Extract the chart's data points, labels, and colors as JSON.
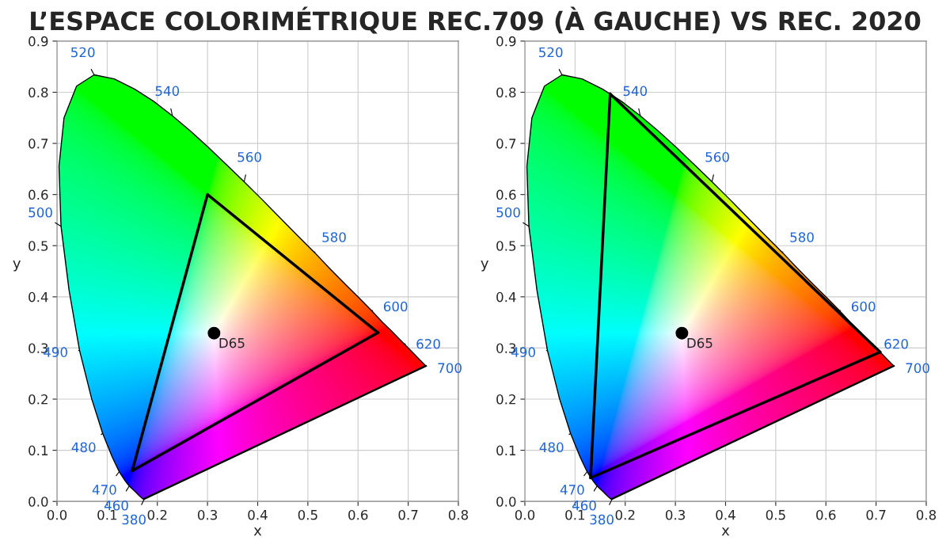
{
  "chart_data": [
    {
      "type": "line",
      "title": "L’ESPACE COLORIMÉTRIQUE REC.709 (À GAUCHE) VS REC. 2020",
      "xlabel": "x",
      "ylabel": "y",
      "xlim": [
        0,
        0.8
      ],
      "ylim": [
        0,
        0.9
      ],
      "xticks": [
        {
          "value": 0,
          "label": "0.0"
        },
        0.1,
        0.2,
        0.3,
        0.4,
        0.5,
        0.6,
        0.7,
        0.8
      ],
      "yticks": [
        {
          "value": 0,
          "label": "0.0"
        },
        0.1,
        0.2,
        0.3,
        0.4,
        0.5,
        0.6,
        0.7,
        0.8,
        0.9
      ],
      "grid": true,
      "series": [
        {
          "color": "#000000",
          "x": [
            0.174,
            0.171,
            0.164,
            0.157,
            0.144,
            0.136,
            0.124,
            0.11,
            0.091,
            0.069,
            0.045,
            0.024,
            0.008,
            0.004,
            0.014,
            0.039,
            0.074,
            0.114,
            0.155,
            0.193,
            0.23,
            0.266,
            0.302,
            0.337,
            0.373,
            0.409,
            0.444,
            0.479,
            0.513,
            0.545,
            0.575,
            0.603,
            0.627,
            0.648,
            0.666,
            0.692,
            0.708,
            0.719,
            0.726,
            0.732,
            0.735
          ],
          "values": [
            0.005,
            0.005,
            0.011,
            0.018,
            0.03,
            0.04,
            0.058,
            0.087,
            0.133,
            0.201,
            0.295,
            0.413,
            0.538,
            0.655,
            0.75,
            0.812,
            0.834,
            0.826,
            0.806,
            0.782,
            0.754,
            0.724,
            0.692,
            0.659,
            0.625,
            0.59,
            0.555,
            0.52,
            0.487,
            0.454,
            0.424,
            0.397,
            0.373,
            0.351,
            0.334,
            0.308,
            0.292,
            0.281,
            0.274,
            0.268,
            0.265
          ]
        },
        {
          "color": "#000000",
          "x": [
            0.735,
            0.174
          ],
          "values": [
            0.265,
            0.005
          ]
        },
        {
          "color": "#000000",
          "x": [
            0.64,
            0.3,
            0.15
          ],
          "values": [
            0.33,
            0.6,
            0.06
          ]
        },
        {
          "color": "#000000",
          "x": [
            0.15,
            0.64
          ],
          "values": [
            0.06,
            0.33
          ]
        },
        {
          "type": "scatter",
          "marker": "circle",
          "color": "#000000",
          "x": [
            0.313
          ],
          "values": [
            0.329
          ]
        }
      ],
      "annotations": [
        {
          "text": "380",
          "x": 0.174,
          "y": 0.005
        },
        {
          "text": "460",
          "x": 0.144,
          "y": 0.03
        },
        {
          "text": "470",
          "x": 0.124,
          "y": 0.058
        },
        {
          "text": "480",
          "x": 0.091,
          "y": 0.133
        },
        {
          "text": "490",
          "x": 0.045,
          "y": 0.295
        },
        {
          "text": "500",
          "x": 0.008,
          "y": 0.538
        },
        {
          "text": "520",
          "x": 0.074,
          "y": 0.834
        },
        {
          "text": "540",
          "x": 0.23,
          "y": 0.754
        },
        {
          "text": "560",
          "x": 0.373,
          "y": 0.625
        },
        {
          "text": "580",
          "x": 0.513,
          "y": 0.487
        },
        {
          "text": "600",
          "x": 0.627,
          "y": 0.373
        },
        {
          "text": "620",
          "x": 0.692,
          "y": 0.308
        },
        {
          "text": "700",
          "x": 0.735,
          "y": 0.265
        },
        {
          "text": "D65",
          "x": 0.313,
          "y": 0.329
        }
      ]
    },
    {
      "type": "line",
      "xlabel": "x",
      "ylabel": "y",
      "xlim": [
        0,
        0.8
      ],
      "ylim": [
        0,
        0.9
      ],
      "xticks": [
        {
          "value": 0,
          "label": "0.0"
        },
        0.1,
        0.2,
        0.3,
        0.4,
        0.5,
        0.6,
        0.7,
        0.8
      ],
      "yticks": [
        {
          "value": 0,
          "label": "0.0"
        },
        0.1,
        0.2,
        0.3,
        0.4,
        0.5,
        0.6,
        0.7,
        0.8,
        0.9
      ],
      "grid": true,
      "series": [
        {
          "color": "#000000",
          "x": [
            0.174,
            0.171,
            0.164,
            0.157,
            0.144,
            0.136,
            0.124,
            0.11,
            0.091,
            0.069,
            0.045,
            0.024,
            0.008,
            0.004,
            0.014,
            0.039,
            0.074,
            0.114,
            0.155,
            0.193,
            0.23,
            0.266,
            0.302,
            0.337,
            0.373,
            0.409,
            0.444,
            0.479,
            0.513,
            0.545,
            0.575,
            0.603,
            0.627,
            0.648,
            0.666,
            0.692,
            0.708,
            0.719,
            0.726,
            0.732,
            0.735
          ],
          "values": [
            0.005,
            0.005,
            0.011,
            0.018,
            0.03,
            0.04,
            0.058,
            0.087,
            0.133,
            0.201,
            0.295,
            0.413,
            0.538,
            0.655,
            0.75,
            0.812,
            0.834,
            0.826,
            0.806,
            0.782,
            0.754,
            0.724,
            0.692,
            0.659,
            0.625,
            0.59,
            0.555,
            0.52,
            0.487,
            0.454,
            0.424,
            0.397,
            0.373,
            0.351,
            0.334,
            0.308,
            0.292,
            0.281,
            0.274,
            0.268,
            0.265
          ]
        },
        {
          "color": "#000000",
          "x": [
            0.735,
            0.174
          ],
          "values": [
            0.265,
            0.005
          ]
        },
        {
          "color": "#000000",
          "x": [
            0.708,
            0.17,
            0.131
          ],
          "values": [
            0.292,
            0.797,
            0.046
          ]
        },
        {
          "color": "#000000",
          "x": [
            0.131,
            0.708
          ],
          "values": [
            0.046,
            0.292
          ]
        },
        {
          "type": "scatter",
          "marker": "circle",
          "color": "#000000",
          "x": [
            0.313
          ],
          "values": [
            0.329
          ]
        }
      ],
      "annotations": [
        {
          "text": "380",
          "x": 0.174,
          "y": 0.005
        },
        {
          "text": "460",
          "x": 0.144,
          "y": 0.03
        },
        {
          "text": "470",
          "x": 0.124,
          "y": 0.058
        },
        {
          "text": "480",
          "x": 0.091,
          "y": 0.133
        },
        {
          "text": "490",
          "x": 0.045,
          "y": 0.295
        },
        {
          "text": "500",
          "x": 0.008,
          "y": 0.538
        },
        {
          "text": "520",
          "x": 0.074,
          "y": 0.834
        },
        {
          "text": "540",
          "x": 0.23,
          "y": 0.754
        },
        {
          "text": "560",
          "x": 0.373,
          "y": 0.625
        },
        {
          "text": "580",
          "x": 0.513,
          "y": 0.487
        },
        {
          "text": "600",
          "x": 0.627,
          "y": 0.373
        },
        {
          "text": "620",
          "x": 0.692,
          "y": 0.308
        },
        {
          "text": "700",
          "x": 0.735,
          "y": 0.265
        },
        {
          "text": "D65",
          "x": 0.313,
          "y": 0.329
        }
      ]
    }
  ]
}
